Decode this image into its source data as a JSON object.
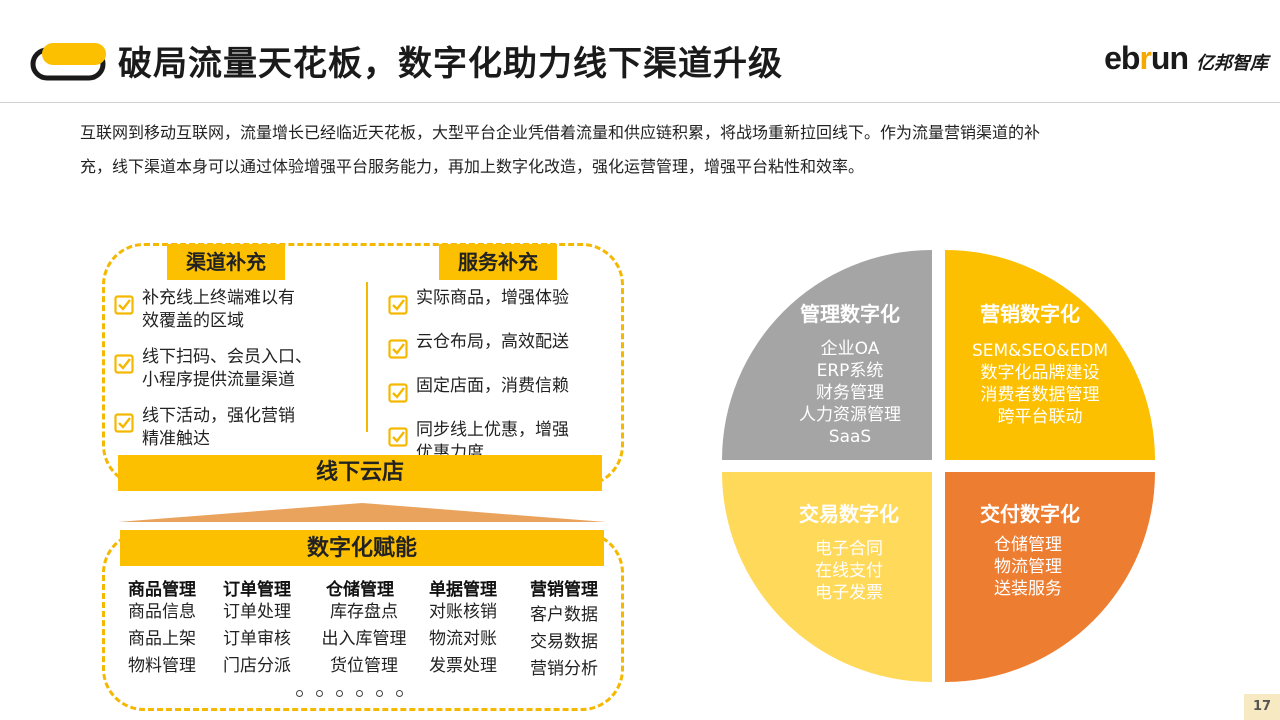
{
  "header": {
    "title": "破局流量天花板，数字化助力线下渠道升级",
    "brand_en_left": "eb",
    "brand_en_r": "r",
    "brand_en_right": "un",
    "brand_cn": "亿邦智库"
  },
  "intro": {
    "line1": "互联网到移动互联网，流量增长已经临近天花板，大型平台企业凭借着流量和供应链积累，将战场重新拉回线下。作为流量营销渠道的补",
    "line2": "充，线下渠道本身可以通过体验增强平台服务能力，再加上数字化改造，强化运营管理，增强平台粘性和效率。"
  },
  "left_diagram": {
    "channel": {
      "tag": "渠道补充",
      "items": [
        {
          "l1": "补充线上终端难以有",
          "l2": "效覆盖的区域"
        },
        {
          "l1": "线下扫码、会员入口、",
          "l2": "小程序提供流量渠道"
        },
        {
          "l1": "线下活动，强化营销",
          "l2": "精准触达"
        }
      ]
    },
    "service": {
      "tag": "服务补充",
      "items": [
        {
          "l1": "实际商品，增强体验",
          "l2": ""
        },
        {
          "l1": "云仓布局，高效配送",
          "l2": ""
        },
        {
          "l1": "固定店面，消费信赖",
          "l2": ""
        },
        {
          "l1": "同步线上优惠，增强",
          "l2": "优惠力度"
        }
      ]
    },
    "store_bar": "线下云店",
    "empower_bar": "数字化赋能",
    "categories": [
      {
        "title": "商品管理",
        "items": [
          "商品信息",
          "商品上架",
          "物料管理"
        ]
      },
      {
        "title": "订单管理",
        "items": [
          "订单处理",
          "订单审核",
          "门店分派"
        ]
      },
      {
        "title": "仓储管理",
        "items": [
          "库存盘点",
          "出入库管理",
          "货位管理"
        ]
      },
      {
        "title": "单据管理",
        "items": [
          "对账核销",
          "物流对账",
          "发票处理"
        ]
      },
      {
        "title": "营销管理",
        "items": [
          "客户数据",
          "交易数据",
          "营销分析"
        ]
      }
    ]
  },
  "quadrants": [
    {
      "title": "管理数字化",
      "lines": [
        "企业OA",
        "ERP系统",
        "财务管理",
        "人力资源管理",
        "SaaS"
      ],
      "color": "#a5a5a5"
    },
    {
      "title": "营销数字化",
      "lines": [
        "SEM&SEO&EDM",
        "数字化品牌建设",
        "消费者数据管理",
        "跨平台联动"
      ],
      "color": "#fcc000"
    },
    {
      "title": "交易数字化",
      "lines": [
        "电子合同",
        "在线支付",
        "电子发票"
      ],
      "color": "#ffd95a"
    },
    {
      "title": "交付数字化",
      "lines": [
        "仓储管理",
        "物流管理",
        "送装服务"
      ],
      "color": "#ed7d31"
    }
  ],
  "page_number": "17",
  "colors": {
    "accent": "#fcc000",
    "orange": "#ed7d31",
    "gray": "#a5a5a5",
    "light_yellow": "#ffd95a"
  }
}
